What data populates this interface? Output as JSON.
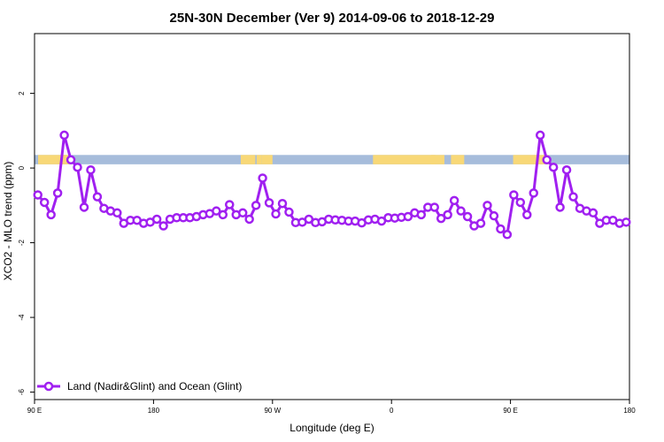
{
  "chart_data": {
    "type": "line",
    "title": "25N-30N December (Ver 9)   2014-09-06 to 2018-12-29",
    "xlabel": "Longitude (deg E)",
    "ylabel": "XCO2 - MLO trend (ppm)",
    "xlim": [
      90,
      540
    ],
    "ylim": [
      -6.2,
      3.6
    ],
    "x_ticks": [
      {
        "value": 90,
        "label": "90 E"
      },
      {
        "value": 180,
        "label": "180"
      },
      {
        "value": 270,
        "label": "90 W"
      },
      {
        "value": 360,
        "label": "0"
      },
      {
        "value": 450,
        "label": "90 E"
      },
      {
        "value": 540,
        "label": "180"
      }
    ],
    "y_ticks": [
      {
        "value": -6,
        "label": "-6"
      },
      {
        "value": -4,
        "label": "-4"
      },
      {
        "value": -2,
        "label": "-2"
      },
      {
        "value": 0,
        "label": "0"
      },
      {
        "value": 2,
        "label": "2"
      }
    ],
    "land_ocean_band": {
      "y_range": [
        0.1,
        0.35
      ],
      "ocean_color": "#a6bcdb",
      "land_color": "#f8d877",
      "land_segments": [
        [
          92.7,
          117.5
        ],
        [
          112,
          114
        ],
        [
          112,
          113
        ],
        [
          246,
          257
        ],
        [
          258,
          262
        ],
        [
          262,
          270
        ],
        [
          346,
          393
        ],
        [
          390,
          400
        ],
        [
          405,
          415
        ],
        [
          452,
          477
        ],
        [
          478,
          479
        ]
      ]
    },
    "series": [
      {
        "name": "Land (Nadir&Glint) and Ocean (Glint)",
        "color": "#a020f0",
        "x": [
          92.5,
          97.5,
          102.5,
          107.5,
          112.5,
          117.5,
          122.5,
          127.5,
          132.5,
          137.5,
          142.5,
          147.5,
          152.5,
          157.5,
          162.5,
          167.5,
          172.5,
          177.5,
          182.5,
          187.5,
          192.5,
          197.5,
          202.5,
          207.5,
          212.5,
          217.5,
          222.5,
          227.5,
          232.5,
          237.5,
          242.5,
          247.5,
          252.5,
          257.5,
          262.5,
          267.5,
          272.5,
          277.5,
          282.5,
          287.5,
          292.5,
          297.5,
          302.5,
          307.5,
          312.5,
          317.5,
          322.5,
          327.5,
          332.5,
          337.5,
          342.5,
          347.5,
          352.5,
          357.5,
          362.5,
          367.5,
          372.5,
          377.5,
          382.5,
          387.5,
          392.5,
          397.5,
          402.5,
          407.5,
          412.5,
          417.5,
          422.5,
          427.5,
          432.5,
          437.5,
          442.5,
          447.5,
          452.5,
          457.5,
          462.5,
          467.5,
          472.5,
          477.5,
          482.5,
          487.5,
          492.5,
          497.5,
          502.5,
          507.5,
          512.5,
          517.5,
          522.5,
          527.5,
          532.5,
          537.5
        ],
        "y": [
          -0.72,
          -0.92,
          -1.25,
          -0.67,
          0.88,
          0.22,
          0.02,
          -1.05,
          -0.05,
          -0.77,
          -1.08,
          -1.15,
          -1.2,
          -1.48,
          -1.4,
          -1.4,
          -1.48,
          -1.45,
          -1.37,
          -1.55,
          -1.37,
          -1.33,
          -1.33,
          -1.33,
          -1.3,
          -1.25,
          -1.22,
          -1.15,
          -1.25,
          -0.98,
          -1.25,
          -1.2,
          -1.37,
          -1.0,
          -0.27,
          -0.93,
          -1.23,
          -0.95,
          -1.18,
          -1.46,
          -1.45,
          -1.37,
          -1.46,
          -1.44,
          -1.37,
          -1.39,
          -1.4,
          -1.42,
          -1.42,
          -1.47,
          -1.39,
          -1.37,
          -1.42,
          -1.33,
          -1.34,
          -1.32,
          -1.3,
          -1.2,
          -1.25,
          -1.05,
          -1.05,
          -1.35,
          -1.25,
          -0.87,
          -1.15,
          -1.3,
          -1.55,
          -1.48,
          -1.0,
          -1.28,
          -1.63,
          -1.78,
          -0.72,
          -0.92,
          -1.25,
          -0.67,
          0.88,
          0.22,
          0.02,
          -1.05,
          -0.05,
          -0.77,
          -1.08,
          -1.15,
          -1.2,
          -1.48,
          -1.4,
          -1.4,
          -1.48,
          -1.45
        ]
      }
    ],
    "legend": {
      "placement": "bottom-left",
      "label": "Land (Nadir&Glint) and Ocean (Glint)"
    },
    "grid": false
  }
}
